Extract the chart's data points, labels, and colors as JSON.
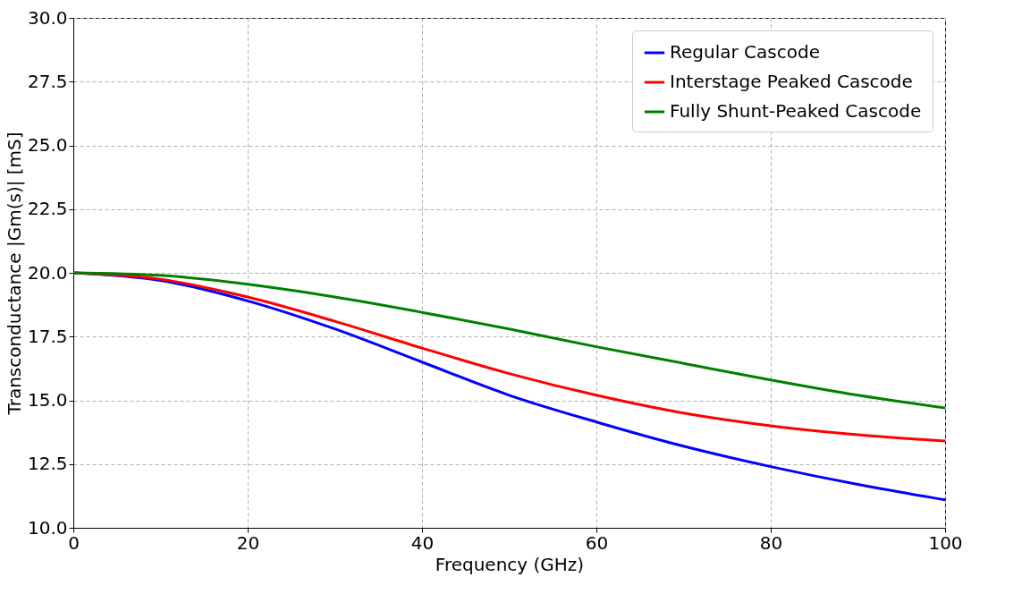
{
  "chart_data": {
    "type": "line",
    "xlabel": "Frequency (GHz)",
    "ylabel": "Transconductance |Gm(s)| [mS]",
    "x": [
      0,
      10,
      20,
      30,
      40,
      50,
      60,
      70,
      80,
      90,
      100
    ],
    "series": [
      {
        "name": "Regular Cascode",
        "color": "#0000ff",
        "values": [
          20,
          19.7,
          18.9,
          17.8,
          16.5,
          15.2,
          14.15,
          13.2,
          12.4,
          11.7,
          11.1
        ]
      },
      {
        "name": "Interstage Peaked Cascode",
        "color": "#ff0000",
        "values": [
          20,
          19.75,
          19.05,
          18.1,
          17.05,
          16.05,
          15.2,
          14.5,
          14.0,
          13.65,
          13.4
        ]
      },
      {
        "name": "Fully Shunt-Peaked Cascode",
        "color": "#008000",
        "values": [
          20,
          19.9,
          19.55,
          19.05,
          18.45,
          17.8,
          17.1,
          16.45,
          15.8,
          15.2,
          14.7
        ]
      }
    ],
    "xlim": [
      0,
      100
    ],
    "xticks": [
      0,
      20,
      40,
      60,
      80,
      100
    ],
    "ylim": [
      10,
      30
    ],
    "yticks": [
      {
        "value": 10,
        "label": "10.0"
      },
      12.5,
      {
        "value": 15,
        "label": "15.0"
      },
      17.5,
      {
        "value": 20,
        "label": "20.0"
      },
      22.5,
      {
        "value": 25,
        "label": "25.0"
      },
      27.5,
      {
        "value": 30,
        "label": "30.0"
      }
    ],
    "grid": true,
    "legend": "top right",
    "marker": "none",
    "line_style": "solid"
  }
}
